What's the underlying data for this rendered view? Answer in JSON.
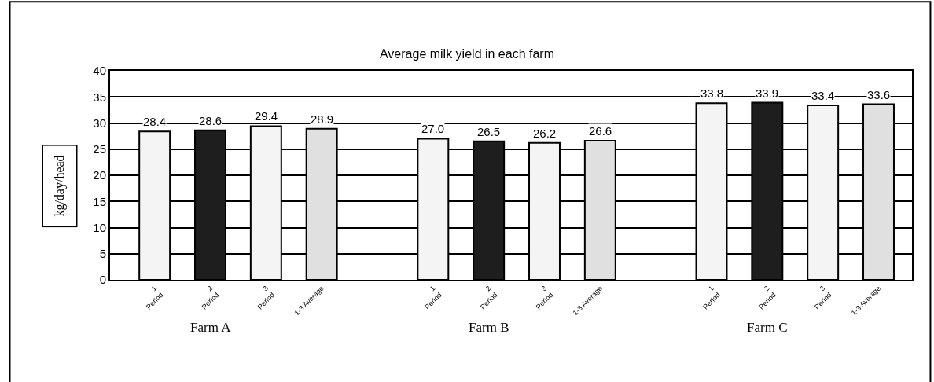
{
  "chart_data": {
    "type": "bar",
    "title": "Average milk yield in each farm",
    "ylabel": "kg/day/head",
    "categories": [
      "1\nPeriod",
      "2\nPeriod",
      "3\nPeriod",
      "1-3 Average",
      null,
      "1\nPeriod",
      "2\nPeriod",
      "3\nPeriod",
      "1-3 Average",
      null,
      "1\nPeriod",
      "2\nPeriod",
      "3\nPeriod",
      "1-3 Average"
    ],
    "values": [
      28.4,
      28.6,
      29.4,
      28.9,
      null,
      27.0,
      26.5,
      26.2,
      26.6,
      null,
      33.8,
      33.9,
      33.4,
      33.6
    ],
    "colors": [
      "#f4f4f4",
      "#1e1e1e",
      "#f4f4f4",
      "#e0e0e0",
      null,
      "#f4f4f4",
      "#1e1e1e",
      "#f4f4f4",
      "#e0e0e0",
      null,
      "#f4f4f4",
      "#1e1e1e",
      "#f4f4f4",
      "#e0e0e0"
    ],
    "ylim": [
      0,
      40
    ],
    "yticks": [
      0,
      5,
      10,
      15,
      20,
      25,
      30,
      35,
      40
    ],
    "value_labels": [
      "28.4",
      "28.6",
      "29.4",
      "28.9",
      null,
      "27.0",
      "26.5",
      "26.2",
      "26.6",
      null,
      "33.8",
      "33.9",
      "33.4",
      "33.6"
    ],
    "grid": "y",
    "legend": false,
    "annotations": [
      "Farm A",
      "Farm B",
      "Farm C"
    ]
  }
}
